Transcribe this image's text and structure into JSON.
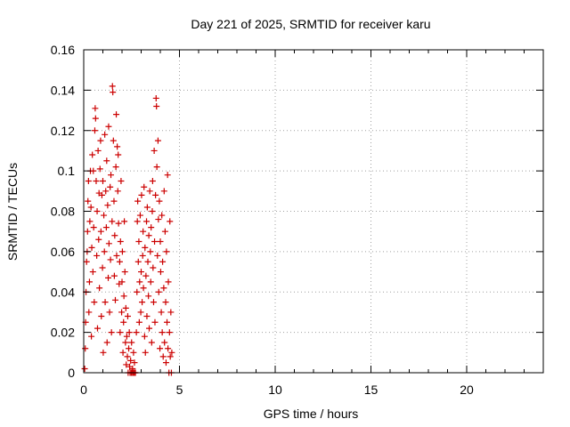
{
  "chart_data": {
    "type": "scatter",
    "title": "Day 221 of 2025, SRMTID for receiver karu",
    "xlabel": "GPS time / hours",
    "ylabel": "SRMTID / TECUs",
    "xlim": [
      0,
      24
    ],
    "ylim": [
      0,
      0.16
    ],
    "xticks": [
      0,
      5,
      10,
      15,
      20
    ],
    "xtick_labels": [
      "0",
      "5",
      "10",
      "15",
      "20"
    ],
    "yticks": [
      0,
      0.02,
      0.04,
      0.06,
      0.08,
      0.1,
      0.12,
      0.14,
      0.16
    ],
    "ytick_labels": [
      "0",
      "0.02",
      "0.04",
      "0.06",
      "0.08",
      "0.1",
      "0.12",
      "0.14",
      "0.16"
    ],
    "grid": true,
    "marker": "plus",
    "color": "#cc0000",
    "series": [
      {
        "points": [
          [
            0.05,
            0.002
          ],
          [
            0.08,
            0.012
          ],
          [
            0.1,
            0.025
          ],
          [
            0.12,
            0.04
          ],
          [
            0.15,
            0.055
          ],
          [
            0.18,
            0.06
          ],
          [
            0.2,
            0.07
          ],
          [
            0.22,
            0.085
          ],
          [
            0.25,
            0.095
          ],
          [
            0.27,
            0.03
          ],
          [
            0.3,
            0.045
          ],
          [
            0.32,
            0.075
          ],
          [
            0.35,
            0.1
          ],
          [
            0.38,
            0.082
          ],
          [
            0.4,
            0.018
          ],
          [
            0.42,
            0.062
          ],
          [
            0.45,
            0.108
          ],
          [
            0.48,
            0.05
          ],
          [
            0.5,
            0.1
          ],
          [
            0.52,
            0.072
          ],
          [
            0.55,
            0.035
          ],
          [
            0.58,
            0.12
          ],
          [
            0.6,
            0.131
          ],
          [
            0.62,
            0.126
          ],
          [
            0.65,
            0.095
          ],
          [
            0.68,
            0.058
          ],
          [
            0.7,
            0.08
          ],
          [
            0.72,
            0.022
          ],
          [
            0.75,
            0.11
          ],
          [
            0.78,
            0.066
          ],
          [
            0.8,
            0.089
          ],
          [
            0.82,
            0.042
          ],
          [
            0.85,
            0.101
          ],
          [
            0.88,
            0.115
          ],
          [
            0.9,
            0.07
          ],
          [
            0.92,
            0.028
          ],
          [
            0.95,
            0.088
          ],
          [
            0.98,
            0.052
          ],
          [
            1.0,
            0.095
          ],
          [
            1.02,
            0.01
          ],
          [
            1.05,
            0.078
          ],
          [
            1.08,
            0.06
          ],
          [
            1.1,
            0.118
          ],
          [
            1.12,
            0.035
          ],
          [
            1.15,
            0.09
          ],
          [
            1.18,
            0.072
          ],
          [
            1.2,
            0.105
          ],
          [
            1.22,
            0.015
          ],
          [
            1.25,
            0.083
          ],
          [
            1.28,
            0.047
          ],
          [
            1.3,
            0.122
          ],
          [
            1.32,
            0.064
          ],
          [
            1.35,
            0.03
          ],
          [
            1.38,
            0.092
          ],
          [
            1.4,
            0.056
          ],
          [
            1.42,
            0.098
          ],
          [
            1.45,
            0.02
          ],
          [
            1.48,
            0.075
          ],
          [
            1.5,
            0.142
          ],
          [
            1.52,
            0.139
          ],
          [
            1.55,
            0.115
          ],
          [
            1.58,
            0.085
          ],
          [
            1.6,
            0.048
          ],
          [
            1.62,
            0.068
          ],
          [
            1.65,
            0.036
          ],
          [
            1.68,
            0.102
          ],
          [
            1.7,
            0.128
          ],
          [
            1.72,
            0.058
          ],
          [
            1.75,
            0.112
          ],
          [
            1.78,
            0.09
          ],
          [
            1.8,
            0.108
          ],
          [
            1.82,
            0.074
          ],
          [
            1.85,
            0.044
          ],
          [
            1.88,
            0.055
          ],
          [
            1.9,
            0.02
          ],
          [
            1.92,
            0.065
          ],
          [
            1.95,
            0.095
          ],
          [
            1.98,
            0.03
          ],
          [
            2.0,
            0.045
          ],
          [
            2.02,
            0.06
          ],
          [
            2.05,
            0.01
          ],
          [
            2.08,
            0.025
          ],
          [
            2.1,
            0.038
          ],
          [
            2.12,
            0.075
          ],
          [
            2.15,
            0.05
          ],
          [
            2.18,
            0.015
          ],
          [
            2.2,
            0.032
          ],
          [
            2.22,
            0.004
          ],
          [
            2.25,
            0.018
          ],
          [
            2.28,
            0.008
          ],
          [
            2.3,
            0.028
          ],
          [
            2.32,
            0.0
          ],
          [
            2.35,
            0.012
          ],
          [
            2.38,
            0.02
          ],
          [
            2.4,
            0.003
          ],
          [
            2.42,
            0.0
          ],
          [
            2.45,
            0.006
          ],
          [
            2.48,
            0.0
          ],
          [
            2.5,
            0.015
          ],
          [
            2.52,
            0.0
          ],
          [
            2.55,
            0.002
          ],
          [
            2.58,
            0.0
          ],
          [
            2.6,
            0.01
          ],
          [
            2.62,
            0.0
          ],
          [
            2.65,
            0.005
          ],
          [
            2.68,
            0.0
          ],
          [
            2.7,
            0.0
          ],
          [
            2.75,
            0.02
          ],
          [
            2.78,
            0.04
          ],
          [
            2.8,
            0.075
          ],
          [
            2.82,
            0.085
          ],
          [
            2.85,
            0.055
          ],
          [
            2.88,
            0.065
          ],
          [
            2.9,
            0.025
          ],
          [
            2.92,
            0.045
          ],
          [
            2.95,
            0.078
          ],
          [
            2.98,
            0.03
          ],
          [
            3.0,
            0.05
          ],
          [
            3.02,
            0.088
          ],
          [
            3.05,
            0.035
          ],
          [
            3.08,
            0.058
          ],
          [
            3.1,
            0.07
          ],
          [
            3.12,
            0.042
          ],
          [
            3.15,
            0.092
          ],
          [
            3.18,
            0.018
          ],
          [
            3.2,
            0.062
          ],
          [
            3.22,
            0.01
          ],
          [
            3.25,
            0.048
          ],
          [
            3.28,
            0.075
          ],
          [
            3.3,
            0.028
          ],
          [
            3.32,
            0.082
          ],
          [
            3.35,
            0.055
          ],
          [
            3.38,
            0.038
          ],
          [
            3.4,
            0.068
          ],
          [
            3.42,
            0.022
          ],
          [
            3.45,
            0.09
          ],
          [
            3.48,
            0.06
          ],
          [
            3.5,
            0.045
          ],
          [
            3.52,
            0.072
          ],
          [
            3.55,
            0.015
          ],
          [
            3.58,
            0.08
          ],
          [
            3.6,
            0.095
          ],
          [
            3.62,
            0.052
          ],
          [
            3.65,
            0.035
          ],
          [
            3.68,
            0.11
          ],
          [
            3.7,
            0.065
          ],
          [
            3.72,
            0.025
          ],
          [
            3.75,
            0.088
          ],
          [
            3.78,
            0.136
          ],
          [
            3.8,
            0.132
          ],
          [
            3.82,
            0.102
          ],
          [
            3.85,
            0.058
          ],
          [
            3.88,
            0.115
          ],
          [
            3.9,
            0.076
          ],
          [
            3.92,
            0.04
          ],
          [
            3.95,
            0.085
          ],
          [
            3.98,
            0.012
          ],
          [
            4.0,
            0.065
          ],
          [
            4.02,
            0.05
          ],
          [
            4.05,
            0.03
          ],
          [
            4.08,
            0.078
          ],
          [
            4.1,
            0.02
          ],
          [
            4.12,
            0.055
          ],
          [
            4.15,
            0.008
          ],
          [
            4.18,
            0.042
          ],
          [
            4.2,
            0.09
          ],
          [
            4.22,
            0.015
          ],
          [
            4.25,
            0.07
          ],
          [
            4.28,
            0.035
          ],
          [
            4.3,
            0.005
          ],
          [
            4.32,
            0.06
          ],
          [
            4.35,
            0.025
          ],
          [
            4.38,
            0.098
          ],
          [
            4.4,
            0.012
          ],
          [
            4.42,
            0.045
          ],
          [
            4.45,
            0.0
          ],
          [
            4.48,
            0.02
          ],
          [
            4.5,
            0.075
          ],
          [
            4.52,
            0.008
          ],
          [
            4.55,
            0.03
          ],
          [
            4.58,
            0.0
          ],
          [
            4.6,
            0.01
          ]
        ]
      }
    ]
  }
}
